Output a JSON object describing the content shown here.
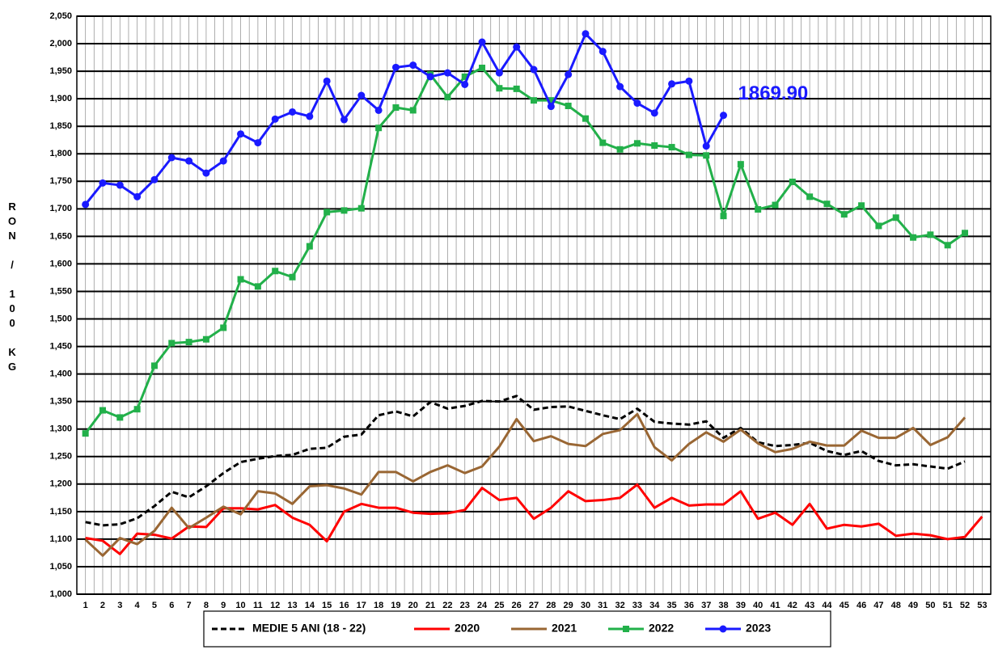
{
  "chart_data": {
    "type": "line",
    "y_label": "RON / 100 KG",
    "annotation": "1869.90",
    "grid": true,
    "categories": [
      "1",
      "2",
      "3",
      "4",
      "5",
      "6",
      "7",
      "8",
      "9",
      "10",
      "11",
      "12",
      "13",
      "14",
      "15",
      "16",
      "17",
      "18",
      "19",
      "20",
      "21",
      "22",
      "23",
      "24",
      "25",
      "26",
      "27",
      "28",
      "29",
      "30",
      "31",
      "32",
      "33",
      "34",
      "35",
      "36",
      "37",
      "38",
      "39",
      "40",
      "41",
      "42",
      "43",
      "44",
      "45",
      "46",
      "47",
      "48",
      "49",
      "50",
      "51",
      "52",
      "53"
    ],
    "ylim": [
      1000,
      2050
    ],
    "yticks": [
      {
        "value": 1000,
        "label": "1,000"
      },
      {
        "value": 1050,
        "label": "1,050"
      },
      {
        "value": 1100,
        "label": "1,100"
      },
      {
        "value": 1150,
        "label": "1,150"
      },
      {
        "value": 1200,
        "label": "1,200"
      },
      {
        "value": 1250,
        "label": "1,250"
      },
      {
        "value": 1300,
        "label": "1,300"
      },
      {
        "value": 1350,
        "label": "1,350"
      },
      {
        "value": 1400,
        "label": "1,400"
      },
      {
        "value": 1450,
        "label": "1,450"
      },
      {
        "value": 1500,
        "label": "1,500"
      },
      {
        "value": 1550,
        "label": "1,550"
      },
      {
        "value": 1600,
        "label": "1,600"
      },
      {
        "value": 1650,
        "label": "1,650"
      },
      {
        "value": 1700,
        "label": "1,700"
      },
      {
        "value": 1750,
        "label": "1,750"
      },
      {
        "value": 1800,
        "label": "1,800"
      },
      {
        "value": 1850,
        "label": "1,850"
      },
      {
        "value": 1900,
        "label": "1,900"
      },
      {
        "value": 1950,
        "label": "1,950"
      },
      {
        "value": 2000,
        "label": "2,000"
      },
      {
        "value": 2050,
        "label": "2,050"
      }
    ],
    "series": [
      {
        "name": "MEDIE 5 ANI (18 - 22)",
        "color": "#000000",
        "dash": true,
        "marker": null,
        "values": [
          1131,
          1125,
          1127,
          1138,
          1160,
          1186,
          1176,
          1196,
          1220,
          1240,
          1246,
          1251,
          1253,
          1264,
          1266,
          1286,
          1290,
          1325,
          1332,
          1323,
          1349,
          1337,
          1342,
          1351,
          1350,
          1360,
          1335,
          1340,
          1341,
          1333,
          1325,
          1318,
          1337,
          1313,
          1310,
          1308,
          1314,
          1284,
          1302,
          1276,
          1269,
          1271,
          1275,
          1260,
          1253,
          1260,
          1242,
          1234,
          1236,
          1232,
          1228,
          1241,
          null
        ]
      },
      {
        "name": "2020",
        "color": "#ff0000",
        "dash": false,
        "marker": null,
        "values": [
          1102,
          1097,
          1073,
          1110,
          1108,
          1101,
          1123,
          1122,
          1156,
          1156,
          1154,
          1162,
          1139,
          1126,
          1096,
          1150,
          1164,
          1157,
          1157,
          1148,
          1146,
          1147,
          1153,
          1193,
          1171,
          1175,
          1137,
          1157,
          1187,
          1169,
          1171,
          1175,
          1199,
          1157,
          1175,
          1161,
          1163,
          1163,
          1187,
          1137,
          1148,
          1126,
          1164,
          1119,
          1126,
          1123,
          1128,
          1106,
          1110,
          1107,
          1100,
          1104,
          1141
        ]
      },
      {
        "name": "2021",
        "color": "#996633",
        "dash": false,
        "marker": null,
        "values": [
          1099,
          1070,
          1102,
          1091,
          1115,
          1157,
          1120,
          1139,
          1159,
          1145,
          1187,
          1183,
          1164,
          1196,
          1198,
          1192,
          1181,
          1222,
          1222,
          1205,
          1222,
          1234,
          1220,
          1232,
          1268,
          1318,
          1278,
          1287,
          1273,
          1269,
          1291,
          1298,
          1327,
          1267,
          1243,
          1273,
          1294,
          1277,
          1299,
          1274,
          1258,
          1264,
          1277,
          1270,
          1270,
          1297,
          1284,
          1284,
          1302,
          1271,
          1285,
          1321,
          null
        ]
      },
      {
        "name": "2022",
        "color": "#22b04a",
        "dash": false,
        "marker": "square",
        "values": [
          1292,
          1334,
          1321,
          1336,
          1415,
          1456,
          1458,
          1463,
          1484,
          1572,
          1559,
          1587,
          1576,
          1632,
          1694,
          1697,
          1701,
          1847,
          1884,
          1879,
          1944,
          1903,
          1940,
          1956,
          1919,
          1918,
          1897,
          1897,
          1887,
          1864,
          1820,
          1808,
          1819,
          1815,
          1812,
          1798,
          1797,
          1687,
          1781,
          1699,
          1707,
          1749,
          1722,
          1709,
          1690,
          1706,
          1669,
          1684,
          1648,
          1653,
          1634,
          1656,
          null
        ]
      },
      {
        "name": "2023",
        "color": "#1a1aff",
        "dash": false,
        "marker": "circle",
        "values": [
          1708,
          1747,
          1743,
          1722,
          1753,
          1793,
          1787,
          1765,
          1787,
          1836,
          1820,
          1863,
          1876,
          1868,
          1932,
          1862,
          1906,
          1879,
          1957,
          1961,
          1940,
          1947,
          1926,
          2003,
          1947,
          1994,
          1953,
          1886,
          1944,
          2018,
          1986,
          1922,
          1892,
          1874,
          1927,
          1932,
          1814,
          1869.9,
          null,
          null,
          null,
          null,
          null,
          null,
          null,
          null,
          null,
          null,
          null,
          null,
          null,
          null,
          null
        ]
      }
    ]
  }
}
